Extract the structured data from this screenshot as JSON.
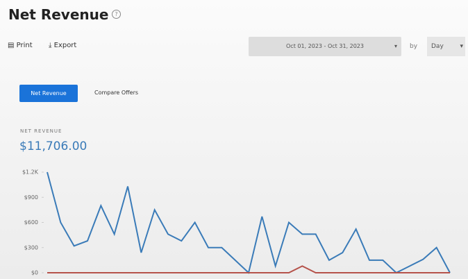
{
  "header": {
    "title": "Net Revenue",
    "help": "?"
  },
  "toolbar": {
    "print": "Print",
    "export": "Export",
    "date_range": "Oct 01, 2023 - Oct 31, 2023",
    "by": "by",
    "interval": "Day"
  },
  "tabs": [
    "Net Revenue",
    "Compare Offers"
  ],
  "metric": {
    "label": "NET REVENUE",
    "value": "$11,706.00"
  },
  "chart_data": {
    "type": "line",
    "ylim": [
      0,
      1200
    ],
    "yticks": [
      {
        "value": 0,
        "label": "$0"
      },
      {
        "value": 300,
        "label": "$300"
      },
      {
        "value": 600,
        "label": "$600"
      },
      {
        "value": 900,
        "label": "$900"
      },
      {
        "value": 1200,
        "label": "$1.2K"
      }
    ],
    "series": [
      {
        "color": "#3a7bb8",
        "values": [
          1200,
          600,
          320,
          380,
          800,
          460,
          1030,
          240,
          750,
          460,
          380,
          600,
          300,
          300,
          150,
          0,
          670,
          80,
          600,
          460,
          460,
          150,
          240,
          520,
          150,
          150,
          0,
          80,
          160,
          300,
          0
        ]
      },
      {
        "color": "#b5524a",
        "values": [
          0,
          0,
          0,
          0,
          0,
          0,
          0,
          0,
          0,
          0,
          0,
          0,
          0,
          0,
          0,
          0,
          0,
          0,
          0,
          80,
          0,
          0,
          0,
          0,
          0,
          0,
          0,
          0,
          0,
          0,
          0
        ]
      }
    ]
  }
}
